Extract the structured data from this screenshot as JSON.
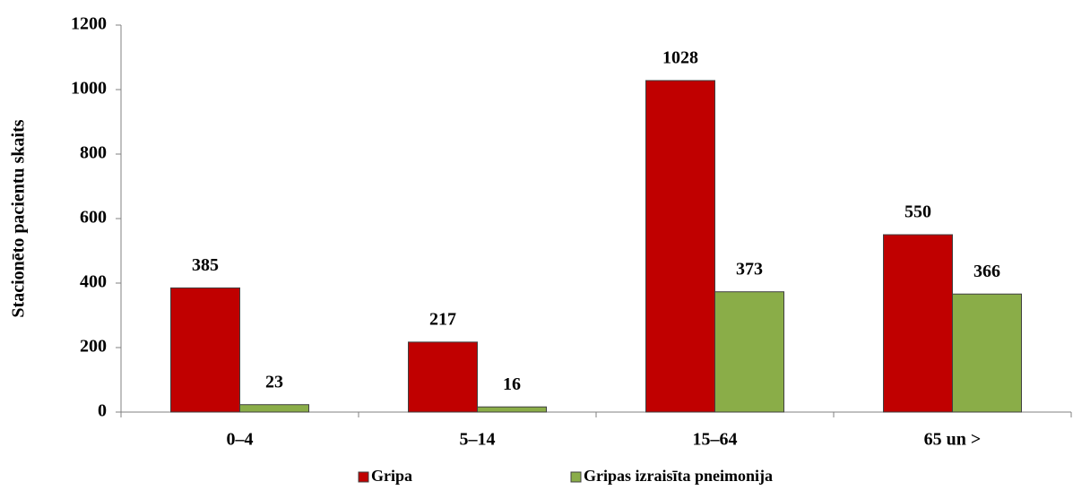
{
  "chart_data": {
    "type": "bar",
    "y_label": "Stacionēto pacientu skaits",
    "categories": [
      "0–4",
      "5–14",
      "15–64",
      "65 un >"
    ],
    "series": [
      {
        "name": "Gripa",
        "color": "#c00000",
        "values": [
          385,
          217,
          1028,
          550
        ]
      },
      {
        "name": "Gripas izraisīta pneimonija",
        "color": "#8aad48",
        "values": [
          23,
          16,
          373,
          366
        ]
      }
    ],
    "ylim": [
      0,
      1200
    ],
    "yticks": [
      0,
      200,
      400,
      600,
      800,
      1000,
      1200
    ],
    "legend": "bottom"
  }
}
